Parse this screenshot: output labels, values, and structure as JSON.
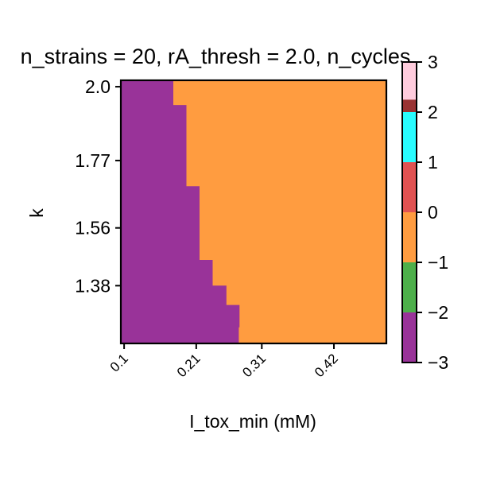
{
  "chart_data": {
    "type": "heatmap",
    "title": "n_strains = 20, rA_thresh = 2.0, n_cycles",
    "xlabel": "I_tox_min (mM)",
    "ylabel": "k",
    "x_ticks": [
      {
        "value": 0.1,
        "label": "0.1"
      },
      {
        "value": 0.21,
        "label": "0.21"
      },
      {
        "value": 0.31,
        "label": "0.31"
      },
      {
        "value": 0.42,
        "label": "0.42"
      }
    ],
    "y_ticks": [
      {
        "value": 2.0,
        "label": "2.0"
      },
      {
        "value": 1.77,
        "label": "1.77"
      },
      {
        "value": 1.56,
        "label": "1.56"
      },
      {
        "value": 1.38,
        "label": "1.38"
      }
    ],
    "xlim": [
      0.095,
      0.5
    ],
    "ylim": [
      1.2,
      2.02
    ],
    "boundary": [
      {
        "k_low": 1.943,
        "k_high": 2.02,
        "I_tox": 0.175
      },
      {
        "k_low": 1.77,
        "k_high": 1.943,
        "I_tox": 0.195
      },
      {
        "k_low": 1.69,
        "k_high": 1.77,
        "I_tox": 0.195
      },
      {
        "k_low": 1.56,
        "k_high": 1.69,
        "I_tox": 0.215
      },
      {
        "k_low": 1.46,
        "k_high": 1.56,
        "I_tox": 0.215
      },
      {
        "k_low": 1.38,
        "k_high": 1.46,
        "I_tox": 0.235
      },
      {
        "k_low": 1.32,
        "k_high": 1.38,
        "I_tox": 0.256
      },
      {
        "k_low": 1.25,
        "k_high": 1.32,
        "I_tox": 0.276
      },
      {
        "k_low": 1.2,
        "k_high": 1.25,
        "I_tox": 0.275
      }
    ],
    "region_left_value": -3,
    "region_right_value": -1,
    "colorbar": {
      "range": [
        -3,
        3
      ],
      "ticks": [
        -3,
        -2,
        -1,
        0,
        1,
        2,
        3
      ],
      "tick_labels": [
        "−3",
        "−2",
        "−1",
        "0",
        "1",
        "2",
        "3"
      ],
      "bins": [
        {
          "from": -3,
          "to": -2,
          "color": "#993399"
        },
        {
          "from": -2,
          "to": -1,
          "color": "#4daf4a"
        },
        {
          "from": -1,
          "to": 0,
          "color": "#ff9c40"
        },
        {
          "from": 0,
          "to": 1,
          "color": "#e05252"
        },
        {
          "from": 1,
          "to": 2,
          "color": "#29fcff"
        },
        {
          "from": 2,
          "to": 2.25,
          "color": "#993333"
        },
        {
          "from": 2.25,
          "to": 3,
          "color": "#ffccdd"
        }
      ]
    },
    "colors": {
      "left_region": "#993399",
      "right_region": "#ff9c40",
      "axis": "#000000"
    },
    "grid": false
  }
}
